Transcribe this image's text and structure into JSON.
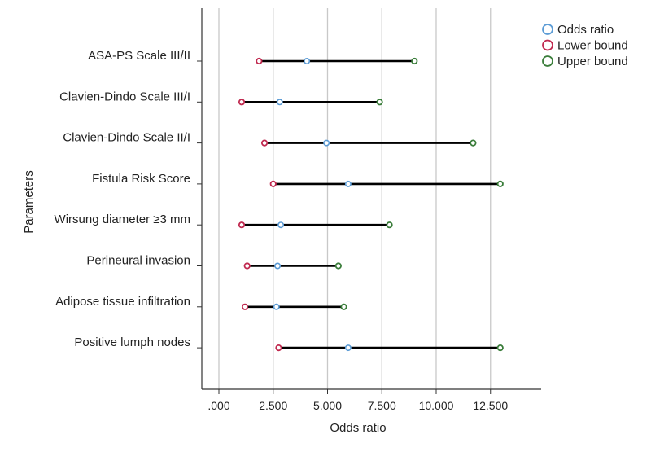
{
  "chart_data": {
    "type": "dot-range",
    "xlabel": "Odds ratio",
    "ylabel": "Parameters",
    "xlim": [
      -0.8,
      14.5
    ],
    "xticks": [
      0,
      2.5,
      5,
      7.5,
      10,
      12.5
    ],
    "xtick_labels": [
      ".000",
      "2.500",
      "5.000",
      "7.500",
      "10.000",
      "12.500"
    ],
    "grid": "vertical",
    "legend_position": "top-right",
    "legend": [
      {
        "key": "or",
        "label": "Odds ratio",
        "color": "#5b9bd5"
      },
      {
        "key": "lower",
        "label": "Lower bound",
        "color": "#c0294f"
      },
      {
        "key": "upper",
        "label": "Upper bound",
        "color": "#3a7d3a"
      }
    ],
    "categories": [
      "ASA-PS Scale III/II",
      "Clavien-Dindo Scale III/I",
      "Clavien-Dindo Scale II/I",
      "Fistula Risk Score",
      "Wirsung diameter ≥3 mm",
      "Perineural invasion",
      "Adipose tissue infiltration",
      "Positive lumph nodes"
    ],
    "series": [
      {
        "name": "Odds ratio",
        "values": [
          4.05,
          2.8,
          4.95,
          5.95,
          2.85,
          2.7,
          2.65,
          5.95
        ]
      },
      {
        "name": "Lower bound",
        "values": [
          1.85,
          1.05,
          2.1,
          2.5,
          1.05,
          1.3,
          1.2,
          2.75
        ]
      },
      {
        "name": "Upper bound",
        "values": [
          9.0,
          7.4,
          11.7,
          12.95,
          7.85,
          5.5,
          5.75,
          12.95
        ]
      }
    ]
  }
}
